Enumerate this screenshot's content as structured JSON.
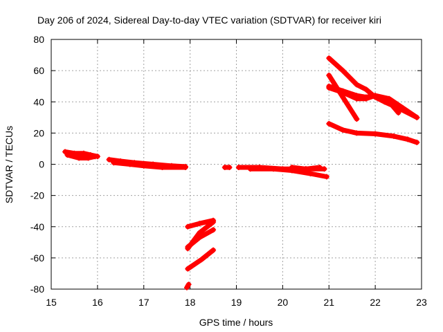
{
  "chart_data": {
    "type": "line",
    "title": "Day 206 of 2024, Sidereal Day-to-day VTEC variation (SDTVAR) for receiver kiri",
    "xlabel": "GPS time / hours",
    "ylabel": "SDTVAR / TECUs",
    "xlim": [
      15,
      23
    ],
    "ylim": [
      -80,
      80
    ],
    "xticks": [
      15,
      16,
      17,
      18,
      19,
      20,
      21,
      22,
      23
    ],
    "yticks": [
      -80,
      -60,
      -40,
      -20,
      0,
      20,
      40,
      60,
      80
    ],
    "grid": true,
    "color": "#ff0000",
    "series": [
      {
        "x": [
          15.3,
          15.5,
          15.7,
          15.85,
          16.0
        ],
        "y": [
          8,
          7,
          7,
          6,
          5
        ]
      },
      {
        "x": [
          15.35,
          15.6,
          15.8,
          15.95
        ],
        "y": [
          6,
          4,
          4,
          5
        ]
      },
      {
        "x": [
          16.25,
          16.5,
          16.8,
          17.2,
          17.6,
          17.9
        ],
        "y": [
          3,
          2,
          1,
          0,
          -1,
          -1.5
        ]
      },
      {
        "x": [
          16.35,
          16.7,
          17.0,
          17.4,
          17.9
        ],
        "y": [
          1,
          0,
          -1,
          -2,
          -2
        ]
      },
      {
        "x": [
          18.75,
          18.85
        ],
        "y": [
          -2,
          -2
        ]
      },
      {
        "x": [
          19.05,
          19.5,
          20.0,
          20.5,
          20.9
        ],
        "y": [
          -2,
          -2,
          -3,
          -3,
          -3
        ]
      },
      {
        "x": [
          19.3,
          19.8,
          20.2,
          20.6,
          20.95
        ],
        "y": [
          -3,
          -3,
          -4,
          -6,
          -8
        ]
      },
      {
        "x": [
          20.2,
          20.5,
          20.8
        ],
        "y": [
          -2,
          -3,
          -2
        ]
      },
      {
        "x": [
          17.95,
          18.2,
          18.5
        ],
        "y": [
          -40,
          -38,
          -36
        ]
      },
      {
        "x": [
          17.95,
          18.2,
          18.5
        ],
        "y": [
          -54,
          -44,
          -37
        ]
      },
      {
        "x": [
          17.95,
          18.2,
          18.5
        ],
        "y": [
          -53,
          -47,
          -42
        ]
      },
      {
        "x": [
          17.95,
          18.25,
          18.5
        ],
        "y": [
          -67,
          -61,
          -55
        ]
      },
      {
        "x": [
          17.93,
          17.97
        ],
        "y": [
          -79,
          -77
        ]
      },
      {
        "x": [
          21.0,
          21.3,
          21.6,
          21.8,
          22.0,
          22.2,
          22.5,
          22.9
        ],
        "y": [
          68,
          60,
          51,
          48,
          43,
          40,
          36,
          30
        ]
      },
      {
        "x": [
          21.0,
          21.3,
          21.6
        ],
        "y": [
          57,
          43,
          29
        ]
      },
      {
        "x": [
          21.0,
          21.3,
          21.6,
          21.8,
          22.0,
          22.3,
          22.5
        ],
        "y": [
          50,
          47,
          44,
          43,
          44,
          40,
          33
        ]
      },
      {
        "x": [
          21.0,
          21.3,
          21.6,
          21.8,
          22.0,
          22.3,
          22.6,
          22.9
        ],
        "y": [
          49,
          46,
          42,
          42,
          44,
          42,
          36,
          30
        ]
      },
      {
        "x": [
          21.0,
          21.3,
          21.6,
          22.0,
          22.4,
          22.7,
          22.9
        ],
        "y": [
          26,
          22,
          20,
          19.5,
          18,
          16,
          14
        ]
      }
    ]
  }
}
